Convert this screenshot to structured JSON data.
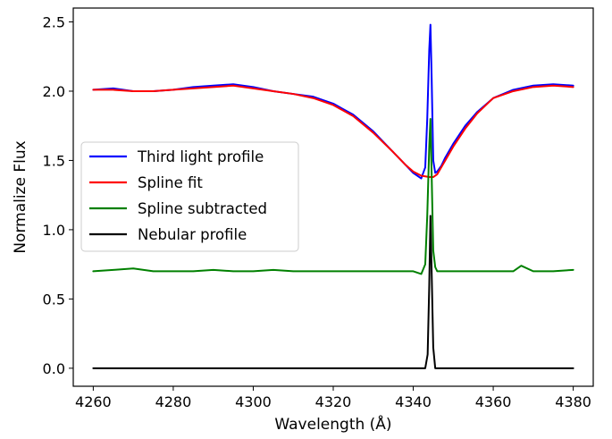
{
  "chart_data": {
    "type": "line",
    "title": "",
    "xlabel": "Wavelength (Å)",
    "ylabel": "Normalize Flux",
    "xlim": [
      4255,
      4385
    ],
    "ylim": [
      -0.13,
      2.6
    ],
    "xticks": [
      4260,
      4280,
      4300,
      4320,
      4340,
      4360,
      4380
    ],
    "yticks": [
      0.0,
      0.5,
      1.0,
      1.5,
      2.0,
      2.5
    ],
    "xtick_labels": [
      "4260",
      "4280",
      "4300",
      "4320",
      "4340",
      "4360",
      "4380"
    ],
    "ytick_labels": [
      "0.0",
      "0.5",
      "1.0",
      "1.5",
      "2.0",
      "2.5"
    ],
    "grid": false,
    "legend_position": "center-left",
    "series": [
      {
        "name": "Third light profile",
        "color": "#0000ff",
        "x": [
          4260,
          4265,
          4270,
          4275,
          4280,
          4285,
          4290,
          4295,
          4300,
          4305,
          4310,
          4315,
          4320,
          4325,
          4330,
          4335,
          4338,
          4340,
          4342,
          4343,
          4343.5,
          4344,
          4344.3,
          4344.6,
          4345,
          4345.5,
          4346,
          4347,
          4348,
          4350,
          4353,
          4356,
          4360,
          4365,
          4370,
          4375,
          4380
        ],
        "y": [
          2.01,
          2.02,
          2.0,
          2.0,
          2.01,
          2.03,
          2.04,
          2.05,
          2.03,
          2.0,
          1.98,
          1.96,
          1.91,
          1.83,
          1.71,
          1.56,
          1.47,
          1.41,
          1.37,
          1.45,
          1.8,
          2.3,
          2.48,
          2.1,
          1.5,
          1.41,
          1.42,
          1.46,
          1.52,
          1.62,
          1.75,
          1.85,
          1.95,
          2.01,
          2.04,
          2.05,
          2.04
        ]
      },
      {
        "name": "Spline fit",
        "color": "#ff0000",
        "x": [
          4260,
          4265,
          4270,
          4275,
          4280,
          4285,
          4290,
          4295,
          4300,
          4305,
          4310,
          4315,
          4320,
          4325,
          4330,
          4335,
          4338,
          4340,
          4342,
          4344,
          4345,
          4346,
          4348,
          4350,
          4353,
          4356,
          4360,
          4365,
          4370,
          4375,
          4380
        ],
        "y": [
          2.01,
          2.01,
          2.0,
          2.0,
          2.01,
          2.02,
          2.03,
          2.04,
          2.02,
          2.0,
          1.98,
          1.95,
          1.9,
          1.82,
          1.7,
          1.56,
          1.47,
          1.42,
          1.39,
          1.38,
          1.38,
          1.4,
          1.5,
          1.6,
          1.73,
          1.84,
          1.95,
          2.0,
          2.03,
          2.04,
          2.03
        ]
      },
      {
        "name": "Spline subtracted",
        "color": "#008000",
        "x": [
          4260,
          4265,
          4270,
          4275,
          4280,
          4285,
          4290,
          4295,
          4300,
          4305,
          4310,
          4315,
          4320,
          4325,
          4330,
          4335,
          4340,
          4342,
          4343,
          4343.5,
          4344,
          4344.3,
          4344.6,
          4345,
          4345.5,
          4346,
          4350,
          4355,
          4360,
          4365,
          4367,
          4370,
          4375,
          4380
        ],
        "y": [
          0.7,
          0.71,
          0.72,
          0.7,
          0.7,
          0.7,
          0.71,
          0.7,
          0.7,
          0.71,
          0.7,
          0.7,
          0.7,
          0.7,
          0.7,
          0.7,
          0.7,
          0.68,
          0.75,
          1.1,
          1.6,
          1.8,
          1.4,
          0.85,
          0.73,
          0.7,
          0.7,
          0.7,
          0.7,
          0.7,
          0.74,
          0.7,
          0.7,
          0.71
        ]
      },
      {
        "name": "Nebular profile",
        "color": "#000000",
        "x": [
          4260,
          4300,
          4340,
          4343,
          4343.6,
          4344,
          4344.3,
          4344.6,
          4345,
          4345.5,
          4350,
          4380
        ],
        "y": [
          0.0,
          0.0,
          0.0,
          0.0,
          0.1,
          0.6,
          1.1,
          0.7,
          0.15,
          0.0,
          0.0,
          0.0
        ]
      }
    ]
  }
}
